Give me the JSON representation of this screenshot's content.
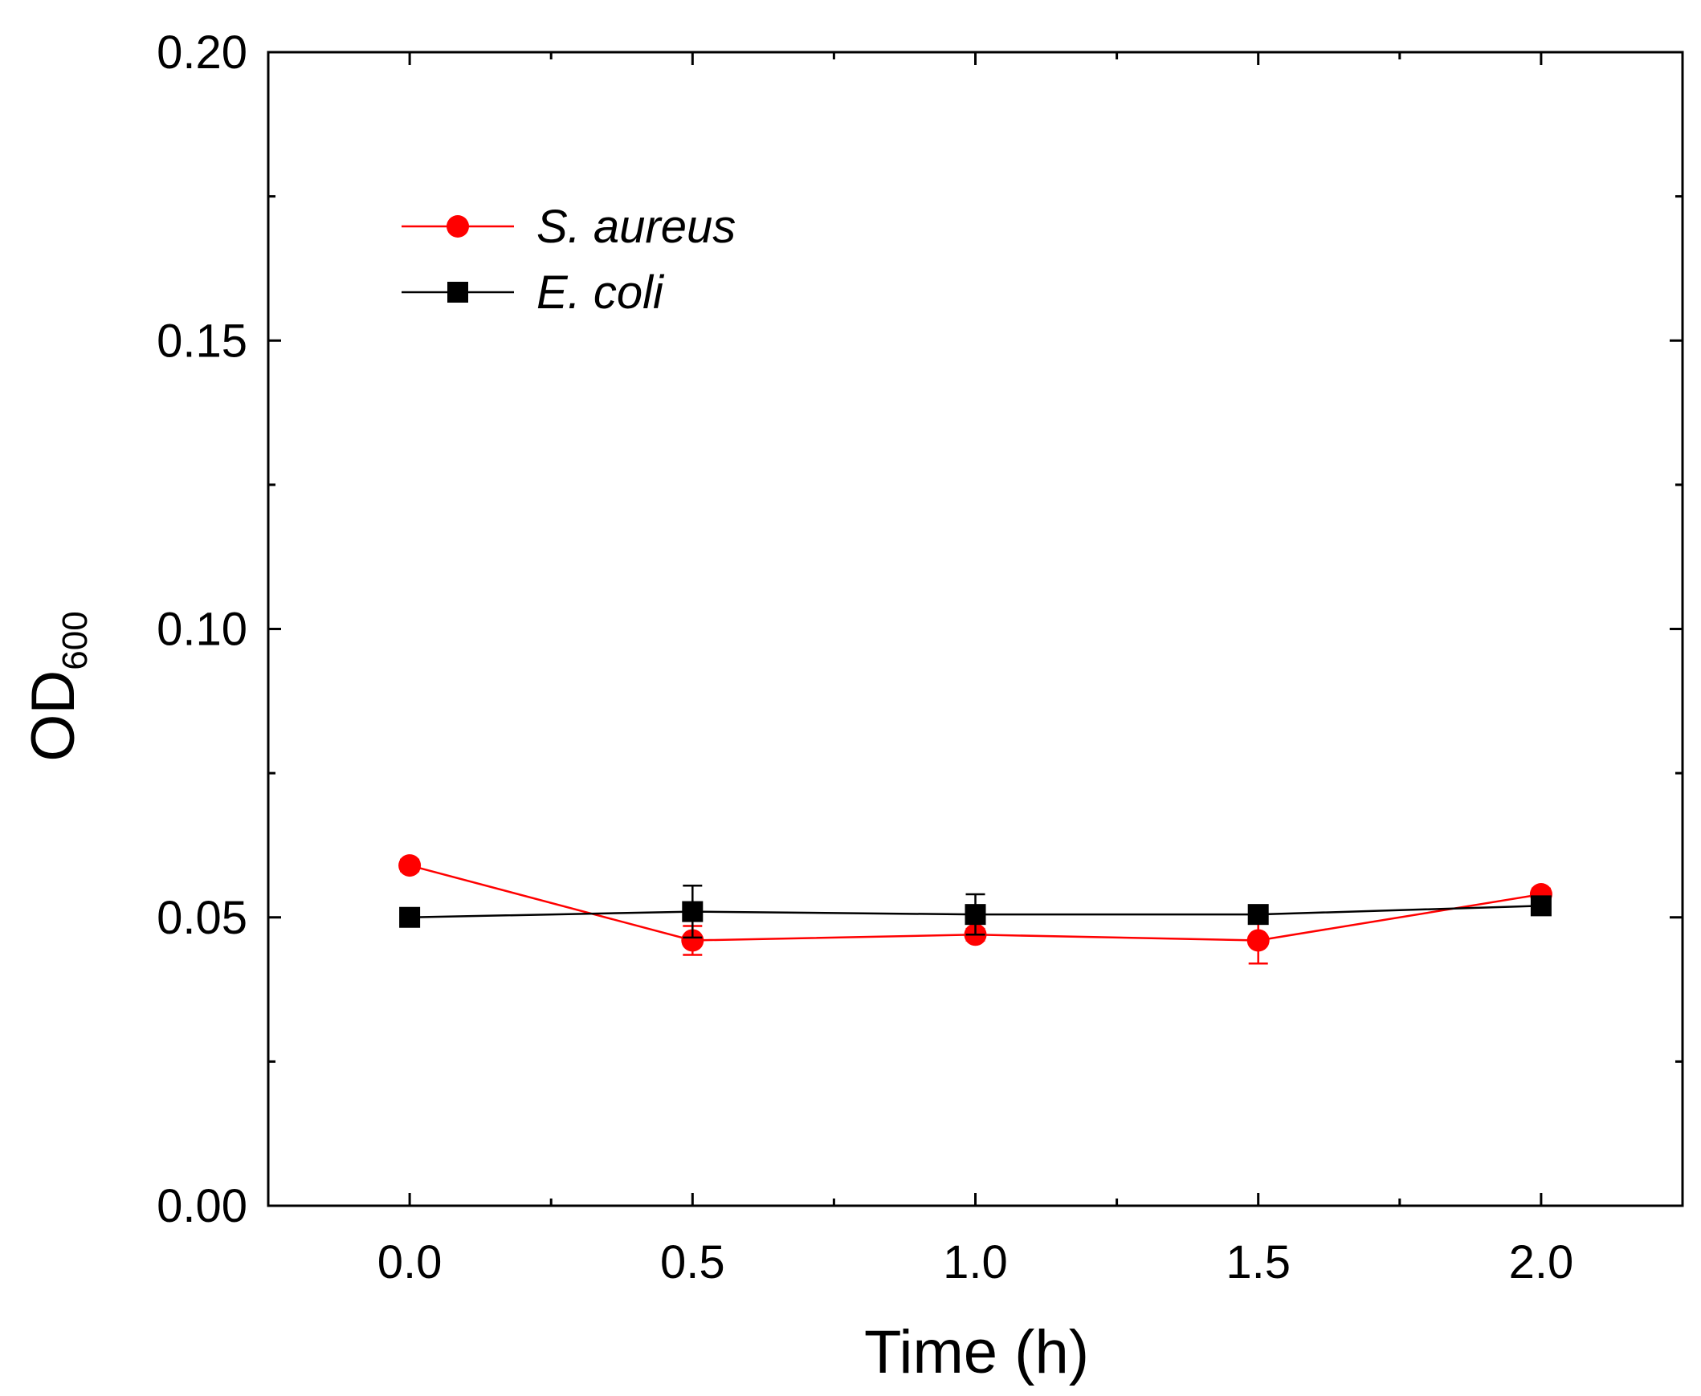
{
  "chart_data": {
    "type": "line",
    "title": "",
    "xlabel": "Time (h)",
    "ylabel": {
      "main": "OD",
      "subscript": "600"
    },
    "xlim": [
      -0.25,
      2.25
    ],
    "ylim": [
      0.0,
      0.2
    ],
    "xticks": [
      0.0,
      0.5,
      1.0,
      1.5,
      2.0
    ],
    "xtick_labels": [
      "0.0",
      "0.5",
      "1.0",
      "1.5",
      "2.0"
    ],
    "yticks": [
      0.0,
      0.05,
      0.1,
      0.15,
      0.2
    ],
    "ytick_labels": [
      "0.00",
      "0.05",
      "0.10",
      "0.15",
      "0.20"
    ],
    "grid": false,
    "legend_position": "top-left",
    "series": [
      {
        "name": "S. aureus",
        "color": "#ff0000",
        "marker": "circle",
        "x": [
          0.0,
          0.5,
          1.0,
          1.5,
          2.0
        ],
        "values": [
          0.059,
          0.046,
          0.047,
          0.046,
          0.054
        ],
        "error": [
          0.001,
          0.0025,
          0.001,
          0.004,
          0.001
        ]
      },
      {
        "name": "E. coli",
        "color": "#000000",
        "marker": "square",
        "x": [
          0.0,
          0.5,
          1.0,
          1.5,
          2.0
        ],
        "values": [
          0.05,
          0.051,
          0.0505,
          0.0505,
          0.052
        ],
        "error": [
          0.0005,
          0.0045,
          0.0035,
          0.0005,
          0.0005
        ]
      }
    ]
  }
}
